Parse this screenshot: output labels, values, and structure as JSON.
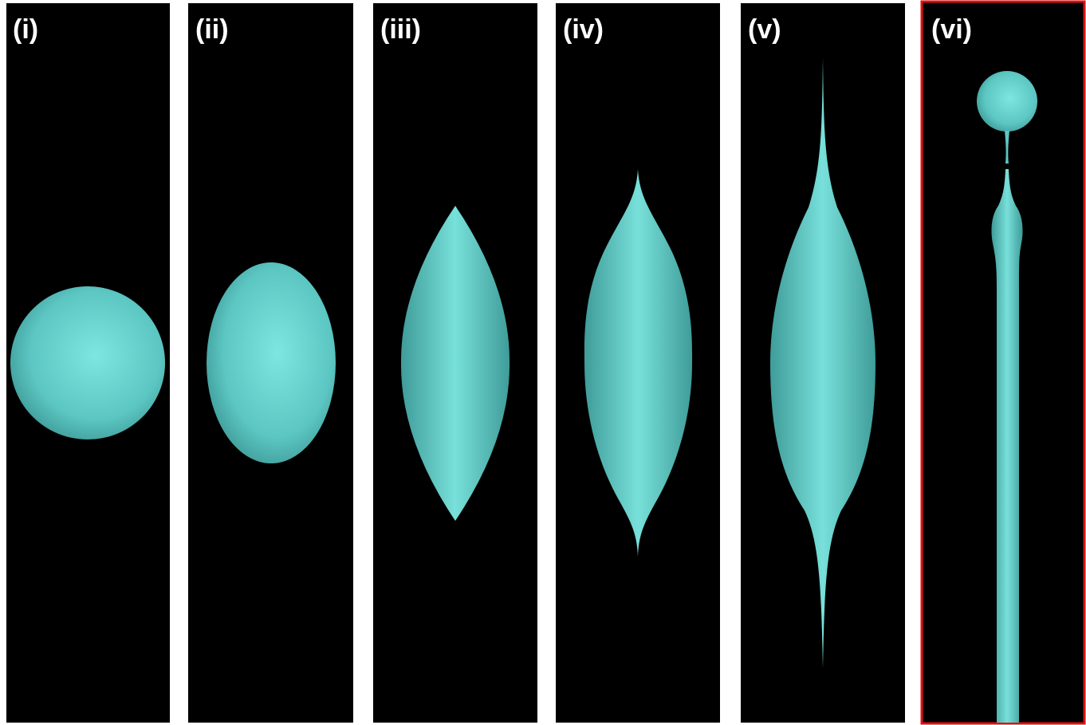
{
  "panels": [
    {
      "label": "(i)"
    },
    {
      "label": "(ii)"
    },
    {
      "label": "(iii)"
    },
    {
      "label": "(iv)"
    },
    {
      "label": "(v)"
    },
    {
      "label": "(vi)"
    }
  ]
}
